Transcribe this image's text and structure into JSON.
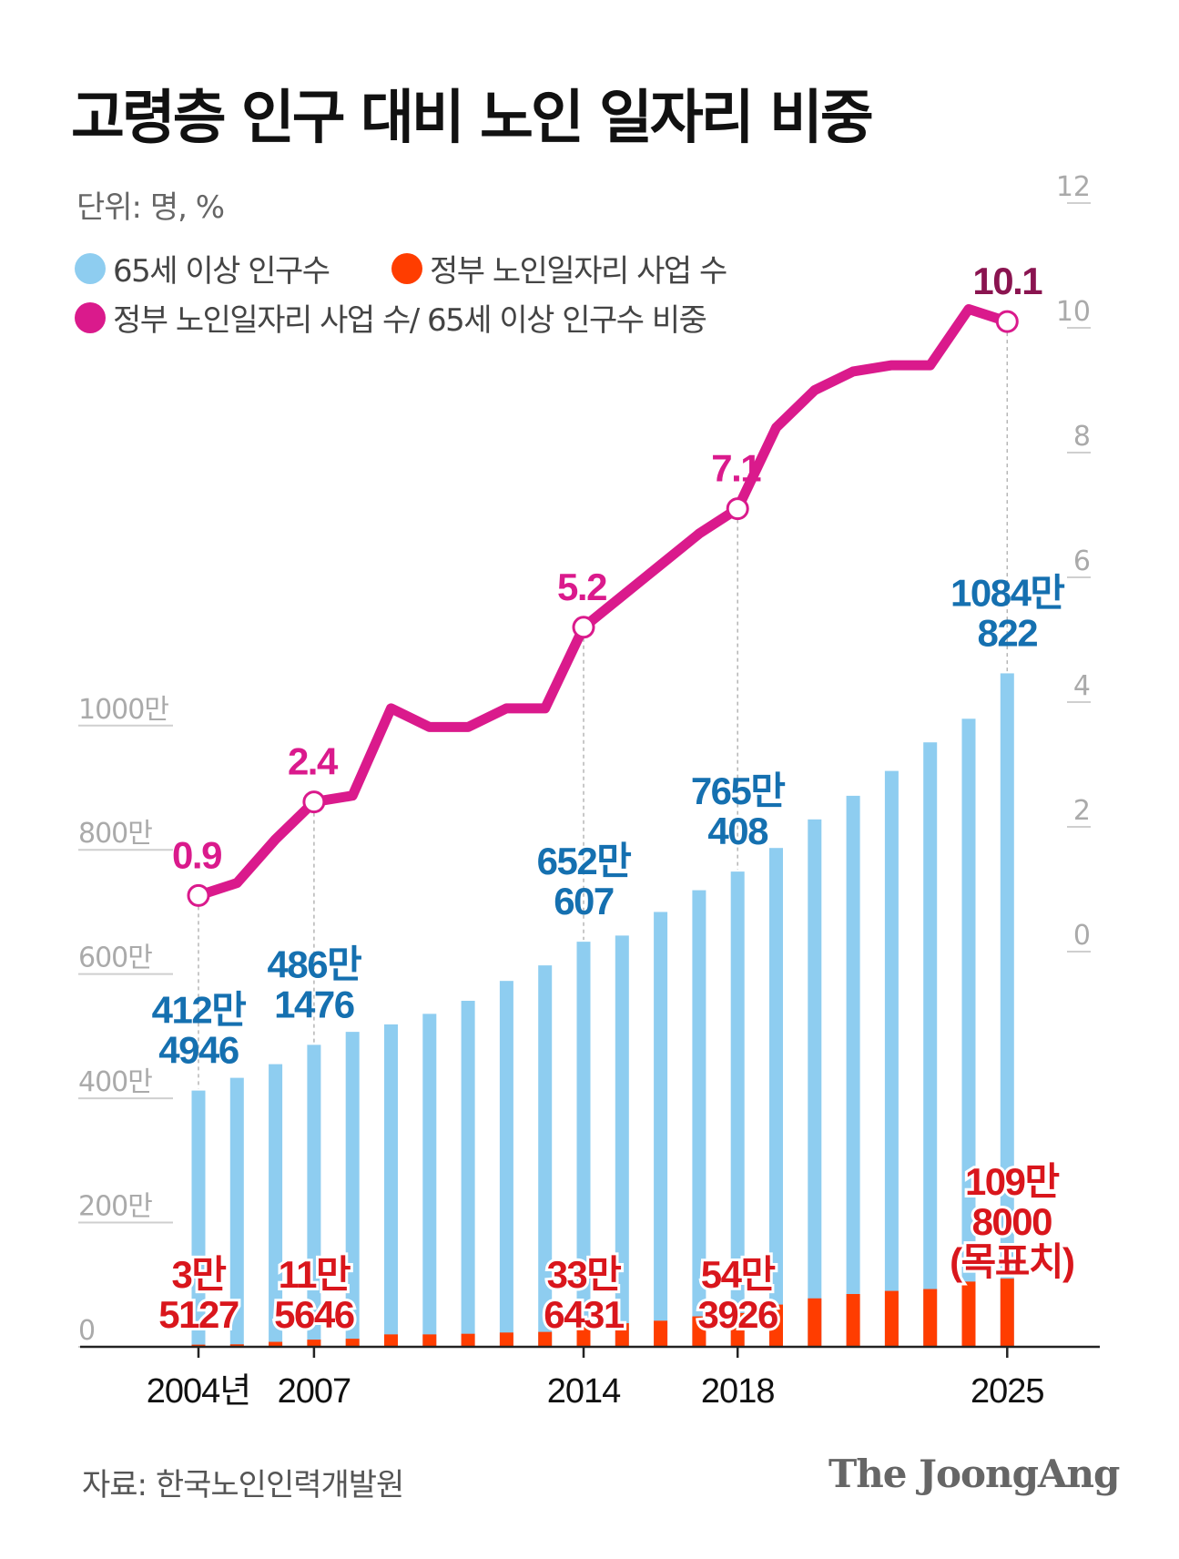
{
  "title": "고령층 인구 대비 노인 일자리 비중",
  "unit_label": "단위: 명, %",
  "legend": {
    "population": "65세 이상 인구수",
    "jobs": "정부 노인일자리 사업 수",
    "ratio": "정부 노인일자리 사업 수/ 65세 이상 인구수 비중"
  },
  "colors": {
    "population": "#8ECDF0",
    "jobs": "#FF3D00",
    "ratio": "#DA1A8C",
    "pop_label": "#1570B0",
    "jobs_label": "#D9161C",
    "ratio_label_last": "#8A1450"
  },
  "source": "자료: 한국노인인력개발원",
  "brand": "The JoongAng",
  "chart_data": {
    "type": "bar+line",
    "x_tick_labels": [
      "2004년",
      "2007",
      "2014",
      "2018",
      "2025"
    ],
    "x": [
      2004,
      2005,
      2006,
      2007,
      2008,
      2009,
      2010,
      2011,
      2012,
      2013,
      2014,
      2015,
      2016,
      2017,
      2018,
      2019,
      2020,
      2021,
      2022,
      2023,
      2024,
      2025
    ],
    "left_axis": {
      "ticks": [
        0,
        200,
        400,
        600,
        800,
        1000
      ],
      "tick_labels": [
        "0",
        "200만",
        "400만",
        "600만",
        "800만",
        "1000만"
      ],
      "range": [
        0,
        1084
      ],
      "unit": "만 명"
    },
    "right_axis": {
      "ticks": [
        0,
        2,
        4,
        6,
        8,
        10,
        12
      ],
      "tick_labels": [
        "0",
        "2",
        "4",
        "6",
        "8",
        "10",
        "12"
      ],
      "range": [
        0,
        12
      ],
      "unit": "%"
    },
    "series": [
      {
        "name": "65세 이상 인구수",
        "type": "bar",
        "axis": "left",
        "values": [
          412.5,
          433,
          455,
          486.1,
          507,
          519,
          536,
          557,
          589,
          614,
          652.1,
          662,
          700,
          735,
          765.0,
          803,
          849,
          887,
          927,
          973,
          1011,
          1084.1
        ]
      },
      {
        "name": "정부 노인일자리 사업 수",
        "type": "bar",
        "axis": "left",
        "values": [
          3.5,
          4,
          8,
          11.6,
          13,
          20,
          20,
          21,
          23,
          24,
          33.6,
          38,
          42,
          49,
          54.4,
          68,
          78,
          85,
          90,
          93,
          105,
          109.8
        ]
      },
      {
        "name": "정부 노인일자리 사업 수/ 65세 이상 인구수 비중",
        "type": "line",
        "axis": "right",
        "values": [
          0.9,
          1.1,
          1.8,
          2.4,
          2.5,
          3.9,
          3.6,
          3.6,
          3.9,
          3.9,
          5.2,
          5.7,
          6.2,
          6.7,
          7.1,
          8.4,
          9.0,
          9.3,
          9.4,
          9.4,
          10.3,
          10.1
        ]
      }
    ],
    "annotations": [
      {
        "x": 2004,
        "population": [
          "412만",
          "4946"
        ],
        "jobs": [
          "3만",
          "5127"
        ],
        "ratio": "0.9"
      },
      {
        "x": 2007,
        "population": [
          "486만",
          "1476"
        ],
        "jobs": [
          "11만",
          "5646"
        ],
        "ratio": "2.4"
      },
      {
        "x": 2014,
        "population": [
          "652만",
          "607"
        ],
        "jobs": [
          "33만",
          "6431"
        ],
        "ratio": "5.2"
      },
      {
        "x": 2018,
        "population": [
          "765만",
          "408"
        ],
        "jobs": [
          "54만",
          "3926"
        ],
        "ratio": "7.1"
      },
      {
        "x": 2025,
        "population": [
          "1084만",
          "822"
        ],
        "jobs": [
          "109만",
          "8000",
          "(목표치)"
        ],
        "ratio": "10.1"
      }
    ],
    "grid": false
  }
}
